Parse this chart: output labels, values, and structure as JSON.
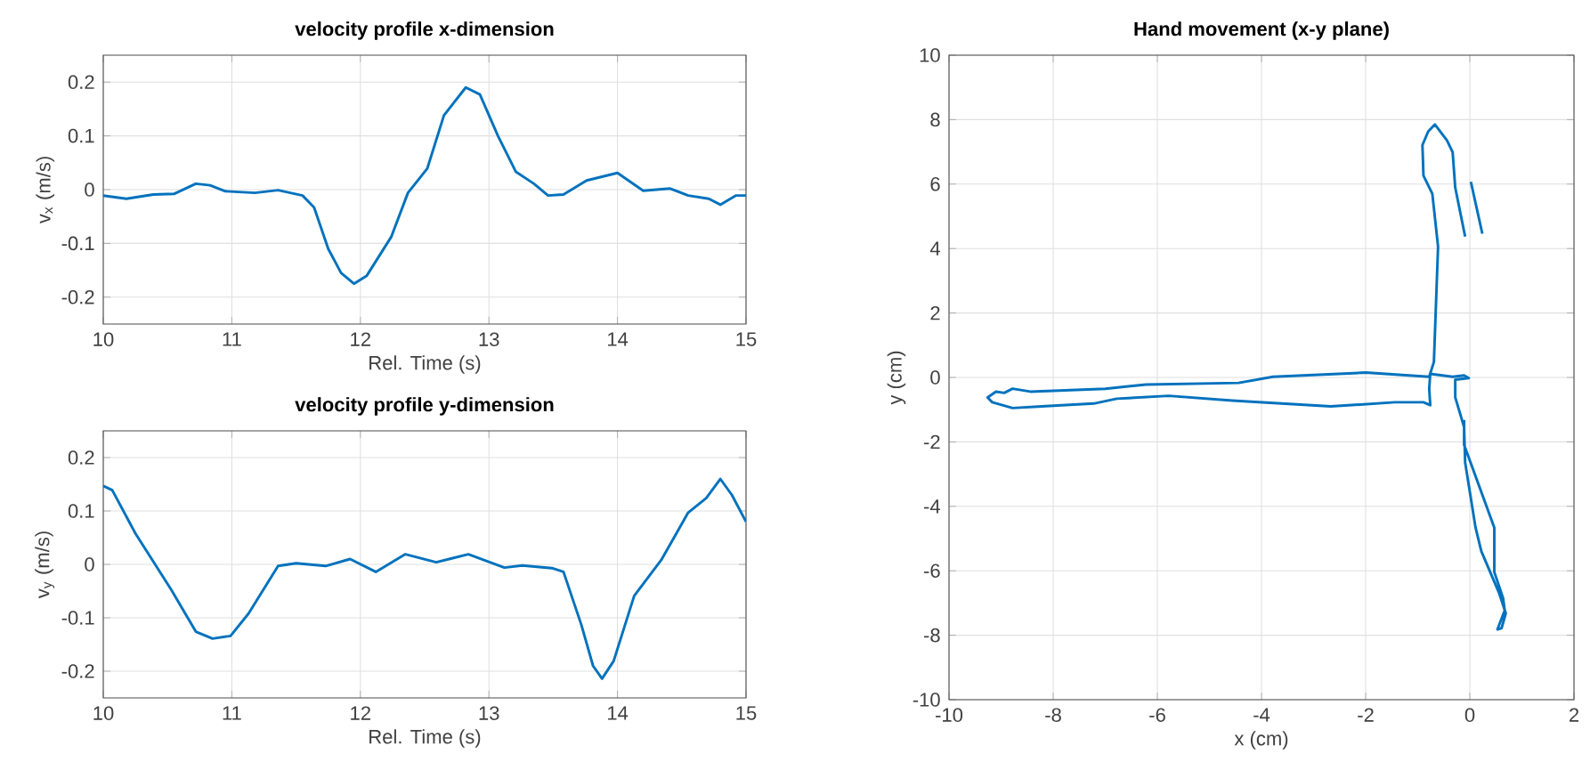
{
  "chart_data": [
    {
      "type": "line",
      "title": "velocity profile x-dimension",
      "xlabel": "Rel. Time (s)",
      "ylabel": "v$_{x}$ (m/s)",
      "xlim": [
        10,
        15
      ],
      "ylim": [
        -0.25,
        0.25
      ],
      "xticks": [
        10,
        11,
        12,
        13,
        14,
        15
      ],
      "yticks": [
        -0.2,
        -0.1,
        0,
        0.1,
        0.2
      ],
      "grid": true,
      "series": [
        {
          "color": "#0072bd",
          "x": [
            10,
            10.18,
            10.39,
            10.55,
            10.72,
            10.83,
            10.95,
            11.18,
            11.36,
            11.55,
            11.64,
            11.75,
            11.85,
            11.95,
            12.05,
            12.24,
            12.37,
            12.52,
            12.65,
            12.82,
            12.93,
            13.07,
            13.21,
            13.35,
            13.46,
            13.58,
            13.76,
            14.0,
            14.2,
            14.41,
            14.55,
            14.71,
            14.8,
            14.92,
            15
          ],
          "values": [
            -0.011,
            -0.017,
            -0.009,
            -0.008,
            0.011,
            0.008,
            -0.003,
            -0.006,
            -0.001,
            -0.011,
            -0.033,
            -0.11,
            -0.155,
            -0.175,
            -0.16,
            -0.088,
            -0.006,
            0.039,
            0.138,
            0.19,
            0.177,
            0.1,
            0.033,
            0.011,
            -0.011,
            -0.009,
            0.017,
            0.031,
            -0.002,
            0.002,
            -0.011,
            -0.017,
            -0.028,
            -0.011,
            -0.011
          ]
        }
      ]
    },
    {
      "type": "line",
      "title": "velocity profile y-dimension",
      "xlabel": "Rel. Time (s)",
      "ylabel": "v$_{y}$ (m/s)",
      "xlim": [
        10,
        15
      ],
      "ylim": [
        -0.25,
        0.25
      ],
      "xticks": [
        10,
        11,
        12,
        13,
        14,
        15
      ],
      "yticks": [
        -0.2,
        -0.1,
        0,
        0.1,
        0.2
      ],
      "grid": true,
      "series": [
        {
          "color": "#0072bd",
          "x": [
            10,
            10.07,
            10.25,
            10.53,
            10.72,
            10.85,
            10.99,
            11.13,
            11.36,
            11.5,
            11.73,
            11.92,
            12.12,
            12.35,
            12.59,
            12.84,
            13.12,
            13.26,
            13.49,
            13.58,
            13.72,
            13.81,
            13.88,
            13.97,
            14.13,
            14.34,
            14.55,
            14.69,
            14.8,
            14.89,
            15
          ],
          "values": [
            0.147,
            0.139,
            0.058,
            -0.048,
            -0.126,
            -0.139,
            -0.134,
            -0.092,
            -0.003,
            0.002,
            -0.003,
            0.01,
            -0.014,
            0.019,
            0.004,
            0.019,
            -0.006,
            -0.002,
            -0.007,
            -0.014,
            -0.114,
            -0.19,
            -0.214,
            -0.181,
            -0.059,
            0.008,
            0.097,
            0.124,
            0.16,
            0.13,
            0.08
          ]
        }
      ]
    },
    {
      "type": "line",
      "title": "Hand movement (x-y plane)",
      "xlabel": "x (cm)",
      "ylabel": "y (cm)",
      "xlim": [
        -10,
        2
      ],
      "ylim": [
        -10,
        10
      ],
      "xticks": [
        -10,
        -8,
        -6,
        -4,
        -2,
        0,
        2
      ],
      "yticks": [
        -10,
        -8,
        -6,
        -4,
        -2,
        0,
        2,
        4,
        6,
        8,
        10
      ],
      "grid": true,
      "series": [
        {
          "color": "#0072bd",
          "x": [
            -0.09,
            -0.28,
            -0.33,
            -0.44,
            -0.67,
            -0.8,
            -0.91,
            -0.89,
            -0.72,
            -0.61,
            -0.69,
            -0.78,
            -2,
            -3.78,
            -4.44,
            -6.22,
            -7,
            -8.44,
            -8.78,
            -8.94,
            -9.1,
            -9.26,
            -9.17,
            -8.78,
            -8.22,
            -7.22,
            -6.78,
            -5.78,
            -4.56,
            -2.67,
            -1.44,
            -0.89,
            -0.76,
            -0.78,
            -0.76,
            -0.33,
            -0.11,
            -0.02,
            -0.28,
            -0.28,
            -0.11,
            -0.09,
            0.11,
            0.22,
            0.56,
            0.69,
            0.61,
            0.53,
            0.67,
            0.64,
            0.47,
            0.47,
            -0.11,
            -0.11
          ],
          "values": [
            4.37,
            5.89,
            6.99,
            7.36,
            7.85,
            7.63,
            7.21,
            6.26,
            5.7,
            4.06,
            0.48,
            0.02,
            0.15,
            0.02,
            -0.17,
            -0.22,
            -0.35,
            -0.44,
            -0.35,
            -0.48,
            -0.44,
            -0.62,
            -0.77,
            -0.95,
            -0.9,
            -0.81,
            -0.66,
            -0.57,
            -0.72,
            -0.9,
            -0.77,
            -0.77,
            -0.86,
            -0.35,
            0.11,
            0.02,
            0.06,
            -0.02,
            -0.07,
            -0.62,
            -1.54,
            -2.64,
            -4.66,
            -5.39,
            -6.68,
            -7.32,
            -7.78,
            -7.82,
            -7.23,
            -6.86,
            -6.04,
            -4.66,
            -2.09,
            -1.32
          ]
        },
        {
          "color": "#0072bd",
          "x": [
            0.24,
            0.02
          ],
          "values": [
            4.46,
            6.07
          ]
        }
      ]
    }
  ]
}
